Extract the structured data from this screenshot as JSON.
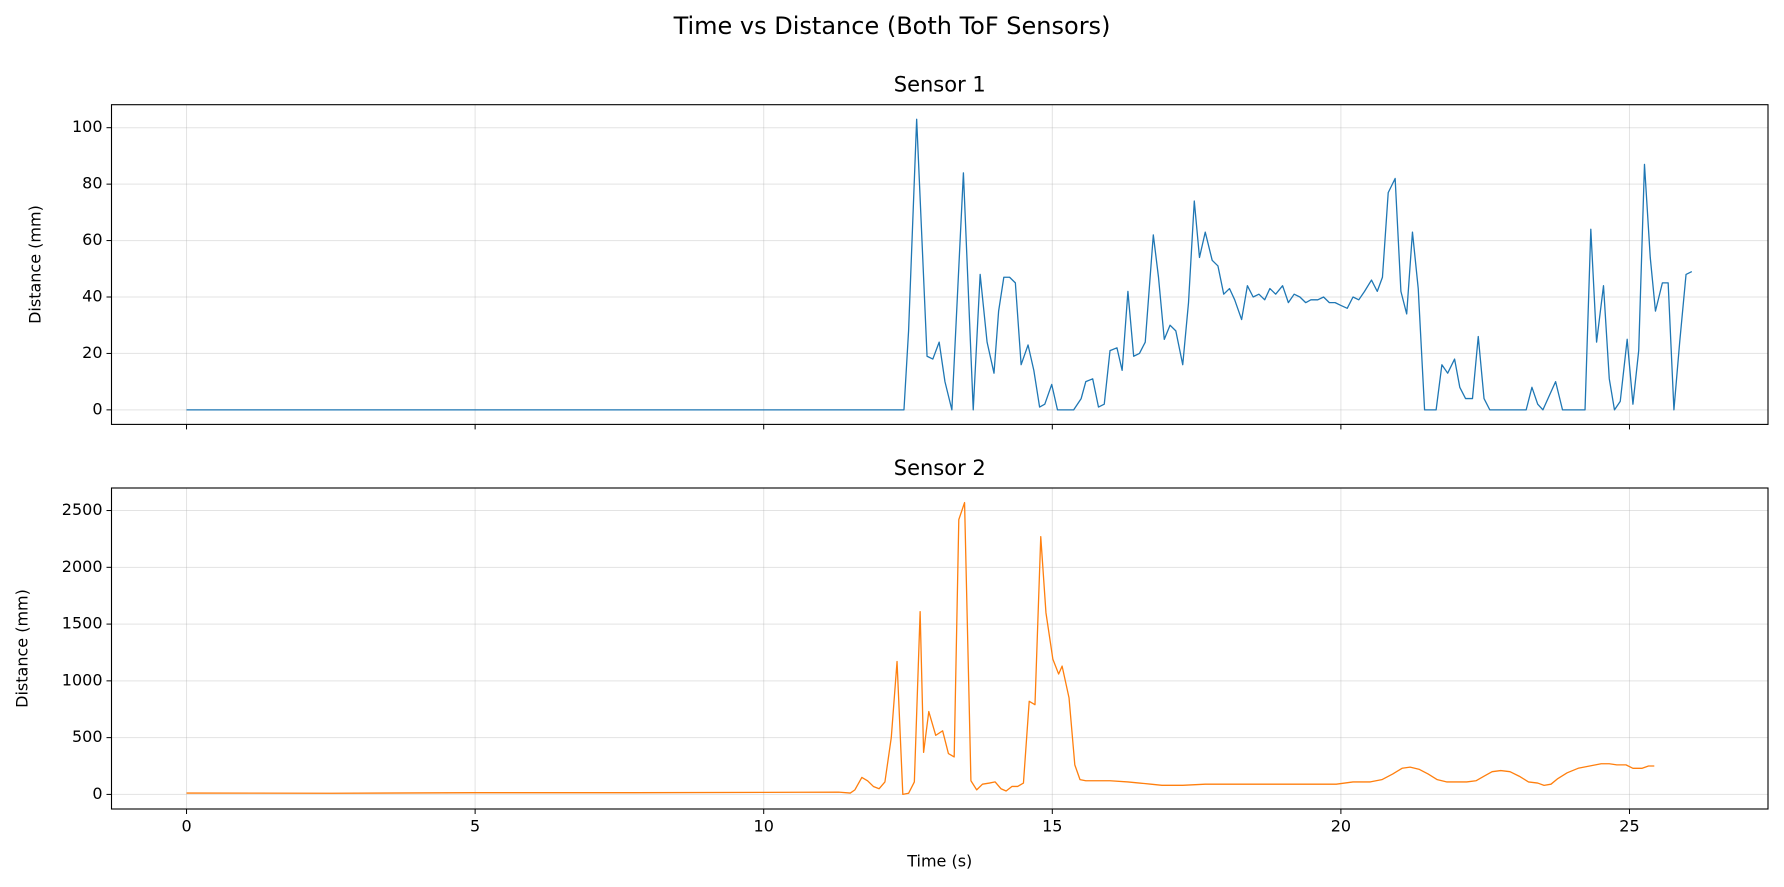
{
  "title": "Time vs Distance (Both ToF Sensors)",
  "chart_data": [
    {
      "type": "line",
      "title": "Sensor 1",
      "ylabel": "Distance (mm)",
      "color": "#1f77b4",
      "grid": true,
      "ylim": [
        -5.15,
        108.15
      ],
      "yticks": [
        0,
        20,
        40,
        60,
        80,
        100
      ],
      "x": [
        0,
        12.33,
        12.43,
        12.51,
        12.65,
        12.83,
        12.93,
        13.04,
        13.14,
        13.26,
        13.46,
        13.63,
        13.75,
        13.87,
        13.99,
        14.07,
        14.16,
        14.26,
        14.36,
        14.46,
        14.58,
        14.68,
        14.78,
        14.87,
        14.99,
        15.09,
        15.37,
        15.5,
        15.58,
        15.7,
        15.8,
        15.9,
        16.0,
        16.12,
        16.21,
        16.31,
        16.41,
        16.51,
        16.61,
        16.75,
        16.84,
        16.94,
        17.04,
        17.14,
        17.26,
        17.36,
        17.46,
        17.55,
        17.65,
        17.77,
        17.87,
        17.97,
        18.07,
        18.16,
        18.28,
        18.38,
        18.48,
        18.58,
        18.68,
        18.77,
        18.87,
        18.99,
        19.09,
        19.19,
        19.29,
        19.39,
        19.48,
        19.6,
        19.7,
        19.8,
        19.9,
        20.0,
        20.11,
        20.21,
        20.31,
        20.41,
        20.53,
        20.63,
        20.72,
        20.82,
        20.94,
        21.04,
        21.14,
        21.24,
        21.34,
        21.45,
        21.65,
        21.75,
        21.85,
        21.97,
        22.06,
        22.16,
        22.28,
        22.38,
        22.48,
        22.58,
        23.21,
        23.31,
        23.41,
        23.5,
        23.72,
        23.84,
        24.23,
        24.33,
        24.43,
        24.55,
        24.65,
        24.74,
        24.84,
        24.96,
        25.06,
        25.16,
        25.26,
        25.36,
        25.45,
        25.57,
        25.67,
        25.77,
        25.87,
        25.98,
        26.08
      ],
      "values": [
        0,
        0,
        0,
        28,
        103,
        19,
        18,
        24,
        10,
        0,
        84,
        0,
        48,
        24,
        13,
        35,
        47,
        47,
        45,
        16,
        23,
        14,
        1,
        2,
        9,
        0,
        0,
        4,
        10,
        11,
        1,
        2,
        21,
        22,
        14,
        42,
        19,
        20,
        24,
        62,
        47,
        25,
        30,
        28,
        16,
        38,
        74,
        54,
        63,
        53,
        51,
        41,
        43,
        39,
        32,
        44,
        40,
        41,
        39,
        43,
        41,
        44,
        38,
        41,
        40,
        38,
        39,
        39,
        40,
        38,
        38,
        37,
        36,
        40,
        39,
        42,
        46,
        42,
        47,
        77,
        82,
        42,
        34,
        63,
        43,
        0,
        0,
        16,
        13,
        18,
        8,
        4,
        4,
        26,
        4,
        0,
        0,
        8,
        2,
        0,
        10,
        0,
        0,
        64,
        24,
        44,
        11,
        0,
        3,
        25,
        2,
        21,
        87,
        54,
        35,
        45,
        45,
        0,
        24,
        48,
        49
      ]
    },
    {
      "type": "line",
      "title": "Sensor 2",
      "ylabel": "Distance (mm)",
      "xlabel": "Time (s)",
      "color": "#ff7f0e",
      "grid": true,
      "xlim": [
        -1.3,
        27.4
      ],
      "xticks": [
        0,
        5,
        10,
        15,
        20,
        25
      ],
      "ylim": [
        -128.5,
        2698.5
      ],
      "yticks": [
        0,
        500,
        1000,
        1500,
        2000,
        2500
      ],
      "x": [
        0,
        2.5,
        5,
        7.5,
        10,
        11.3,
        11.5,
        11.58,
        11.7,
        11.8,
        11.9,
        12.0,
        12.1,
        12.21,
        12.31,
        12.41,
        12.51,
        12.61,
        12.71,
        12.77,
        12.86,
        12.98,
        13.1,
        13.2,
        13.3,
        13.38,
        13.48,
        13.59,
        13.69,
        13.79,
        13.91,
        14.01,
        14.11,
        14.2,
        14.3,
        14.4,
        14.5,
        14.6,
        14.7,
        14.8,
        14.89,
        15.01,
        15.11,
        15.17,
        15.29,
        15.39,
        15.48,
        15.58,
        15.8,
        16.0,
        16.31,
        16.51,
        16.71,
        16.9,
        17.26,
        17.65,
        18.44,
        19.23,
        19.92,
        20.21,
        20.51,
        20.71,
        20.9,
        21.06,
        21.2,
        21.36,
        21.51,
        21.67,
        21.83,
        22.18,
        22.34,
        22.48,
        22.62,
        22.77,
        22.93,
        23.09,
        23.25,
        23.41,
        23.52,
        23.64,
        23.76,
        23.92,
        24.11,
        24.31,
        24.51,
        24.65,
        24.78,
        24.94,
        25.06,
        25.22,
        25.33,
        25.43
      ],
      "values": [
        12,
        10,
        15,
        15,
        18,
        20,
        12,
        40,
        150,
        120,
        70,
        50,
        110,
        500,
        1170,
        0,
        10,
        110,
        1610,
        370,
        730,
        520,
        560,
        360,
        330,
        2420,
        2570,
        120,
        40,
        90,
        100,
        110,
        50,
        30,
        70,
        70,
        100,
        820,
        790,
        2270,
        1600,
        1190,
        1060,
        1130,
        850,
        260,
        130,
        120,
        120,
        120,
        110,
        100,
        90,
        80,
        80,
        90,
        90,
        90,
        90,
        110,
        110,
        130,
        180,
        230,
        240,
        220,
        180,
        130,
        110,
        110,
        120,
        160,
        200,
        210,
        200,
        160,
        110,
        100,
        80,
        90,
        140,
        190,
        230,
        250,
        270,
        270,
        260,
        260,
        230,
        230,
        250,
        250
      ]
    }
  ]
}
